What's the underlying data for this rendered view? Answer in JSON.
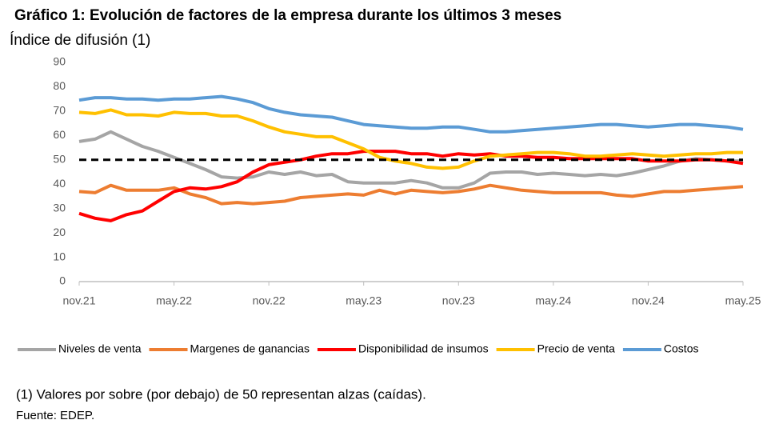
{
  "chart_data": {
    "type": "line",
    "title": "Gráfico 1: Evolución de factores de la empresa durante los últimos 3 meses",
    "y_label": "Índice de difusión (1)",
    "categories": [
      "nov.21",
      null,
      null,
      null,
      null,
      null,
      "may.22",
      null,
      null,
      null,
      null,
      null,
      "nov.22",
      null,
      null,
      null,
      null,
      null,
      "may.23",
      null,
      null,
      null,
      null,
      null,
      "nov.23",
      null,
      null,
      null,
      null,
      null,
      "may.24",
      null,
      null,
      null,
      null,
      null,
      "nov.24",
      null,
      null,
      null,
      null,
      null,
      "may.25"
    ],
    "series": [
      {
        "name": "Niveles de venta",
        "color": "#a5a5a5",
        "values": [
          57.5,
          58.5,
          61.5,
          58.5,
          55.5,
          53.5,
          51,
          48.5,
          46,
          43,
          42.5,
          43,
          45,
          44,
          45,
          43.5,
          44,
          41,
          40.5,
          40.5,
          40.5,
          41.5,
          40.5,
          38.5,
          38.5,
          40.5,
          44.5,
          45,
          45,
          44,
          44.5,
          44,
          43.5,
          44,
          43.5,
          44.5,
          46,
          47.5,
          49.5,
          50.5,
          50,
          49.5,
          49.5
        ]
      },
      {
        "name": "Margenes de ganancias",
        "color": "#ed7d31",
        "values": [
          37,
          36.5,
          39.5,
          37.5,
          37.5,
          37.5,
          38.5,
          36,
          34.5,
          32,
          32.5,
          32,
          32.5,
          33,
          34.5,
          35,
          35.5,
          36,
          35.5,
          37.5,
          36,
          37.5,
          37,
          36.5,
          37,
          38,
          39.5,
          38.5,
          37.5,
          37,
          36.5,
          36.5,
          36.5,
          36.5,
          35.5,
          35,
          36,
          37,
          37,
          37.5,
          38,
          38.5,
          39
        ]
      },
      {
        "name": "Disponibilidad de insumos",
        "color": "#ff0000",
        "values": [
          28,
          26,
          25,
          27.5,
          29,
          33,
          37,
          38.5,
          38,
          39,
          41,
          45,
          48,
          49,
          50,
          51.5,
          52.5,
          52.5,
          53.5,
          53.5,
          53.5,
          52.5,
          52.5,
          51.5,
          52.5,
          52,
          52.5,
          51.5,
          51.5,
          51,
          51,
          50.5,
          50.5,
          50.5,
          50.5,
          50.5,
          49.5,
          49.5,
          49.5,
          50,
          50,
          49.5,
          48.5
        ]
      },
      {
        "name": "Precio de venta",
        "color": "#ffc000",
        "values": [
          69.5,
          69,
          70.5,
          68.5,
          68.5,
          68,
          69.5,
          69,
          69,
          68,
          68,
          66,
          63.5,
          61.5,
          60.5,
          59.5,
          59.5,
          57,
          54.5,
          51,
          49.5,
          48.5,
          47,
          46.5,
          47,
          49.5,
          51.5,
          52,
          52.5,
          53,
          53,
          52.5,
          51.5,
          51.5,
          52,
          52.5,
          52,
          51.5,
          52,
          52.5,
          52.5,
          53,
          53
        ]
      },
      {
        "name": "Costos",
        "color": "#5b9bd5",
        "values": [
          74.5,
          75.5,
          75.5,
          75,
          75,
          74.5,
          75,
          75,
          75.5,
          76,
          75,
          73.5,
          71,
          69.5,
          68.5,
          68,
          67.5,
          66,
          64.5,
          64,
          63.5,
          63,
          63,
          63.5,
          63.5,
          62.5,
          61.5,
          61.5,
          62,
          62.5,
          63,
          63.5,
          64,
          64.5,
          64.5,
          64,
          63.5,
          64,
          64.5,
          64.5,
          64,
          63.5,
          62.5
        ]
      }
    ],
    "reference_line": 50,
    "ylim": [
      0,
      90
    ],
    "yticks": [
      0,
      10,
      20,
      30,
      40,
      50,
      60,
      70,
      80,
      90
    ],
    "legend": "bottom",
    "footnote": "(1) Valores por sobre (por debajo) de 50 representan alzas (caídas).",
    "source": "Fuente: EDEP."
  }
}
